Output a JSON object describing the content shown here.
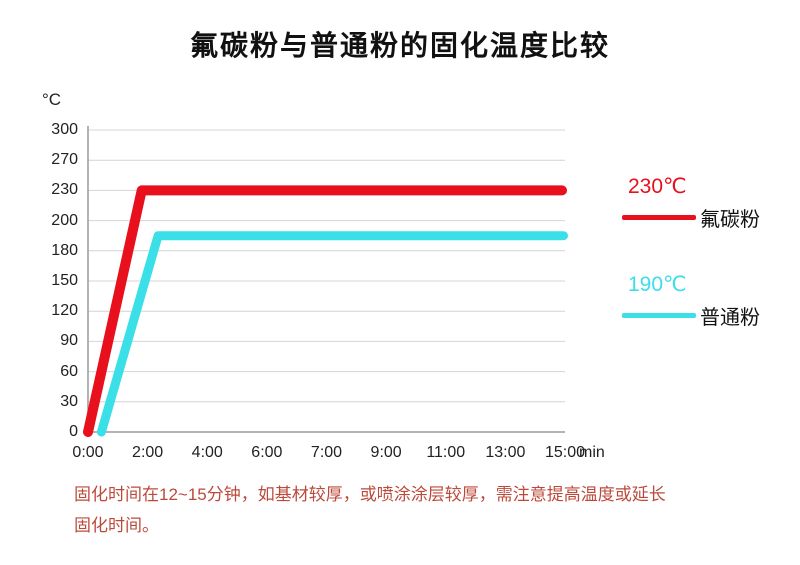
{
  "title": "氟碳粉与普通粉的固化温度比较",
  "axes": {
    "y_unit": "°C",
    "x_unit": "min",
    "y_ticks": [
      "300",
      "270",
      "230",
      "200",
      "180",
      "150",
      "120",
      "90",
      "60",
      "30",
      "0"
    ],
    "x_ticks": [
      "0:00",
      "2:00",
      "4:00",
      "6:00",
      "7:00",
      "9:00",
      "11:00",
      "13:00",
      "15:00"
    ]
  },
  "legend": [
    {
      "temp": "230℃",
      "name": "氟碳粉",
      "color": "#e8101c"
    },
    {
      "temp": "190℃",
      "name": "普通粉",
      "color": "#3adfe8"
    }
  ],
  "footnote": "固化时间在12~15分钟，如基材较厚，或喷涂涂层较厚，需注意提高温度或延长固化时间。",
  "chart_data": {
    "type": "line",
    "title": "氟碳粉与普通粉的固化温度比较",
    "xlabel": "min",
    "ylabel": "°C",
    "grid": true,
    "legend_position": "right",
    "y_tick_values": [
      0,
      30,
      60,
      90,
      120,
      150,
      180,
      200,
      230,
      270,
      300
    ],
    "x_tick_minutes": [
      0,
      2,
      4,
      6,
      7,
      9,
      11,
      13,
      15
    ],
    "series": [
      {
        "name": "氟碳粉",
        "color": "#e8101c",
        "plateau_temp": 230,
        "points": [
          [
            0,
            0
          ],
          [
            1.8,
            230
          ],
          [
            14.9,
            230
          ]
        ]
      },
      {
        "name": "普通粉",
        "color": "#3adfe8",
        "plateau_temp": 190,
        "points": [
          [
            0.45,
            0
          ],
          [
            2.35,
            190
          ],
          [
            14.95,
            190
          ]
        ]
      }
    ]
  }
}
